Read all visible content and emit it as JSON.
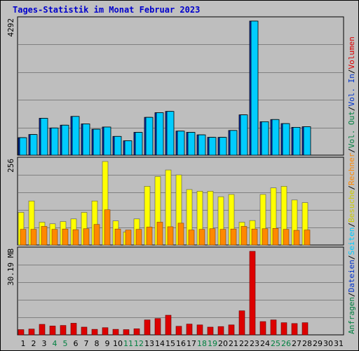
{
  "title": "Tages-Statistik im Monat Februar 2023",
  "colors": {
    "background": "#c0c0c0",
    "panel": "#bebebe",
    "grid": "#808080",
    "anfragen": "#00ccff",
    "dateien": "#0033cc",
    "seiten": "#00ccff",
    "besuche": "#ffff00",
    "rechner": "#ff8800",
    "volumen": "#dd0000",
    "weekend_label": "#008040",
    "weekday_label": "#000000"
  },
  "chart_data": [
    {
      "type": "bar",
      "panel": "hits",
      "ylabel": "4292",
      "ylim": [
        0,
        4292
      ],
      "categories": [
        "1",
        "2",
        "3",
        "4",
        "5",
        "6",
        "7",
        "8",
        "9",
        "10",
        "11",
        "12",
        "13",
        "14",
        "15",
        "16",
        "17",
        "18",
        "19",
        "20",
        "21",
        "22",
        "23",
        "24",
        "25",
        "26",
        "27",
        "28",
        "29",
        "30",
        "31"
      ],
      "series": [
        {
          "name": "Anfragen",
          "color": "#00ccff",
          "values": [
            560,
            660,
            1180,
            870,
            960,
            1240,
            1000,
            830,
            900,
            600,
            460,
            730,
            1210,
            1360,
            1400,
            770,
            730,
            650,
            570,
            570,
            790,
            1290,
            4292,
            1070,
            1140,
            1010,
            890,
            910,
            null,
            null,
            null
          ]
        },
        {
          "name": "Dateien",
          "color": "#0033cc",
          "values": [
            520,
            620,
            1130,
            830,
            920,
            1200,
            960,
            790,
            860,
            560,
            420,
            690,
            1170,
            1320,
            1360,
            730,
            690,
            610,
            530,
            530,
            750,
            1250,
            4250,
            1030,
            1100,
            970,
            850,
            870,
            null,
            null,
            null
          ]
        }
      ],
      "legend": [
        "Anfragen",
        "Dateien"
      ]
    },
    {
      "type": "bar",
      "panel": "visits",
      "ylabel": "256",
      "ylim": [
        0,
        256
      ],
      "categories": [
        "1",
        "2",
        "3",
        "4",
        "5",
        "6",
        "7",
        "8",
        "9",
        "10",
        "11",
        "12",
        "13",
        "14",
        "15",
        "16",
        "17",
        "18",
        "19",
        "20",
        "21",
        "22",
        "23",
        "24",
        "25",
        "26",
        "27",
        "28",
        "29",
        "30",
        "31"
      ],
      "series": [
        {
          "name": "Seiten",
          "color": "#00ccff",
          "values": [
            null,
            null,
            null,
            null,
            null,
            null,
            null,
            null,
            null,
            null,
            null,
            null,
            null,
            null,
            null,
            null,
            null,
            null,
            null,
            null,
            null,
            null,
            null,
            null,
            null,
            null,
            null,
            null,
            null,
            null,
            null
          ]
        },
        {
          "name": "Besuche",
          "color": "#ffff00",
          "values": [
            100,
            135,
            70,
            65,
            72,
            80,
            100,
            135,
            256,
            74,
            40,
            80,
            180,
            210,
            230,
            215,
            170,
            165,
            165,
            148,
            155,
            70,
            75,
            155,
            175,
            180,
            138,
            130,
            null,
            null,
            null
          ]
        },
        {
          "name": "Rechner",
          "color": "#ff8800",
          "values": [
            48,
            48,
            57,
            48,
            49,
            47,
            50,
            63,
            108,
            49,
            46,
            48,
            55,
            70,
            56,
            67,
            46,
            48,
            50,
            48,
            49,
            57,
            49,
            50,
            51,
            48,
            45,
            46,
            null,
            null,
            null
          ]
        }
      ],
      "legend": [
        "Seiten",
        "Besuche",
        "Rechner"
      ]
    },
    {
      "type": "bar",
      "panel": "volume",
      "ylabel": "30.19 MB",
      "ylim": [
        0,
        30.19
      ],
      "categories": [
        "1",
        "2",
        "3",
        "4",
        "5",
        "6",
        "7",
        "8",
        "9",
        "10",
        "11",
        "12",
        "13",
        "14",
        "15",
        "16",
        "17",
        "18",
        "19",
        "20",
        "21",
        "22",
        "23",
        "24",
        "25",
        "26",
        "27",
        "28",
        "29",
        "30",
        "31"
      ],
      "series": [
        {
          "name": "Volumen",
          "color": "#dd0000",
          "values": [
            1.9,
            2.1,
            3.8,
            3.2,
            3.4,
            4.2,
            2.8,
            2.0,
            2.6,
            2.0,
            1.9,
            2.2,
            5.4,
            5.9,
            7.1,
            3.1,
            3.9,
            3.6,
            2.8,
            3.0,
            3.6,
            8.7,
            30.19,
            4.8,
            5.4,
            4.4,
            4.1,
            4.4,
            null,
            null,
            null
          ]
        }
      ],
      "legend": [
        "Volumen"
      ]
    }
  ],
  "x_labels": [
    "1",
    "2",
    "3",
    "4",
    "5",
    "6",
    "7",
    "8",
    "9",
    "10",
    "11",
    "12",
    "13",
    "14",
    "15",
    "16",
    "17",
    "18",
    "19",
    "20",
    "21",
    "22",
    "23",
    "24",
    "25",
    "26",
    "27",
    "28",
    "29",
    "30",
    "31"
  ],
  "weekend_days": [
    4,
    5,
    11,
    12,
    18,
    19,
    25,
    26
  ],
  "right_legend": [
    {
      "text": "Anfragen",
      "color": "#008040"
    },
    {
      "text": "/",
      "color": "#000000"
    },
    {
      "text": "Dateien",
      "color": "#0033cc"
    },
    {
      "text": "/",
      "color": "#000000"
    },
    {
      "text": "Seiten",
      "color": "#00ccff"
    },
    {
      "text": "/",
      "color": "#000000"
    },
    {
      "text": "Besuche",
      "color": "#cccc00"
    },
    {
      "text": "/",
      "color": "#000000"
    },
    {
      "text": "Rechner",
      "color": "#ff8800"
    },
    {
      "text": "/",
      "color": "#000000"
    },
    {
      "text": "Vol. Out",
      "color": "#008040"
    },
    {
      "text": "/",
      "color": "#000000"
    },
    {
      "text": "Vol. In",
      "color": "#0033cc"
    },
    {
      "text": "/",
      "color": "#000000"
    },
    {
      "text": "Volumen",
      "color": "#dd0000"
    }
  ]
}
